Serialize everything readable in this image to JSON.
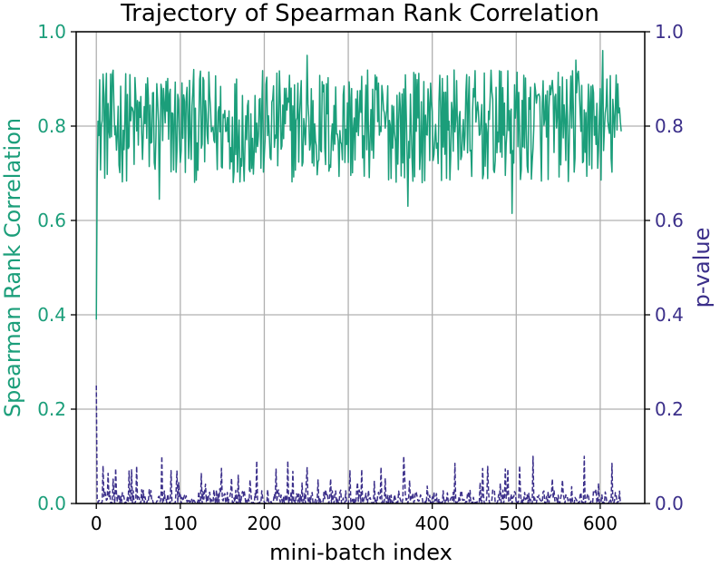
{
  "colors": {
    "left_series": "#1b9e7a",
    "right_series": "#3b2f8a",
    "grid": "#b0b0b0",
    "axis": "#000000",
    "background": "#ffffff"
  },
  "chart_data": {
    "type": "line",
    "title": "Trajectory of Spearman Rank Correlation",
    "xlabel": "mini-batch index",
    "ylabel_left": "Spearman Rank Correlation",
    "ylabel_right": "p-value",
    "xlim": [
      -24,
      653
    ],
    "ylim_left": [
      0,
      1
    ],
    "ylim_right": [
      0,
      1
    ],
    "grid": true,
    "x_ticks": [
      0,
      100,
      200,
      300,
      400,
      500,
      600
    ],
    "x_tick_labels": [
      "0",
      "100",
      "200",
      "300",
      "400",
      "500",
      "600"
    ],
    "y_left_ticks": [
      0.0,
      0.2,
      0.4,
      0.6,
      0.8,
      1.0
    ],
    "y_left_tick_labels": [
      "0.0",
      "0.2",
      "0.4",
      "0.6",
      "0.8",
      "1.0"
    ],
    "y_right_ticks": [
      0.0,
      0.2,
      0.4,
      0.6,
      0.8,
      1.0
    ],
    "y_right_tick_labels": [
      "0.0",
      "0.2",
      "0.4",
      "0.6",
      "0.8",
      "1.0"
    ],
    "series": [
      {
        "name": "Spearman Rank Correlation",
        "axis": "left",
        "style": "solid",
        "n_points": 626,
        "x_start": 0,
        "x_end": 625,
        "keypoints": [
          {
            "x": 0,
            "y": 0.39
          },
          {
            "x": 3,
            "y": 0.78
          },
          {
            "x": 8,
            "y": 0.91
          },
          {
            "x": 75,
            "y": 0.645
          },
          {
            "x": 251,
            "y": 0.95
          },
          {
            "x": 371,
            "y": 0.63
          },
          {
            "x": 495,
            "y": 0.615
          },
          {
            "x": 571,
            "y": 0.94
          },
          {
            "x": 603,
            "y": 0.96
          }
        ],
        "typical_range": [
          0.68,
          0.92
        ],
        "mean": 0.8
      },
      {
        "name": "p-value",
        "axis": "right",
        "style": "dashed",
        "n_points": 626,
        "x_start": 0,
        "x_end": 625,
        "keypoints": [
          {
            "x": 0,
            "y": 0.25
          },
          {
            "x": 8,
            "y": 0.08
          },
          {
            "x": 78,
            "y": 0.1
          },
          {
            "x": 191,
            "y": 0.09
          },
          {
            "x": 228,
            "y": 0.09
          },
          {
            "x": 366,
            "y": 0.1
          },
          {
            "x": 427,
            "y": 0.085
          },
          {
            "x": 520,
            "y": 0.1
          },
          {
            "x": 581,
            "y": 0.1
          },
          {
            "x": 614,
            "y": 0.085
          }
        ],
        "typical_range": [
          0.0,
          0.03
        ]
      }
    ]
  }
}
